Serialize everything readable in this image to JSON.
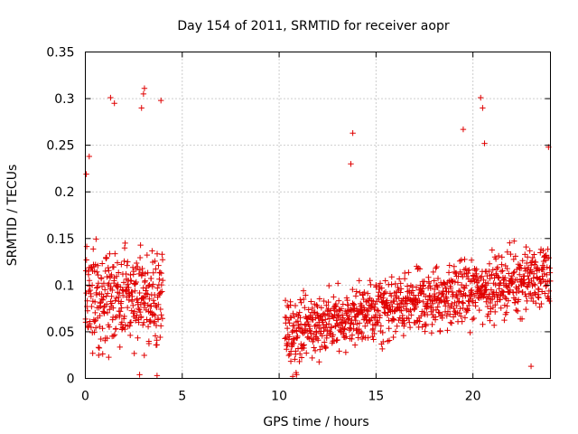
{
  "chart_data": {
    "type": "scatter",
    "title": "Day 154 of 2011, SRMTID for receiver aopr",
    "xlabel": "GPS time / hours",
    "ylabel": "SRMTID / TECUs",
    "xlim": [
      0,
      24
    ],
    "ylim": [
      0,
      0.35
    ],
    "x_ticks": [
      0,
      5,
      10,
      15,
      20
    ],
    "x_tick_labels": [
      "0",
      "5",
      "10",
      "15",
      "20"
    ],
    "y_ticks": [
      0,
      0.05,
      0.1,
      0.15,
      0.2,
      0.25,
      0.3,
      0.35
    ],
    "y_tick_labels": [
      "0",
      "0.05",
      "0.1",
      "0.15",
      "0.2",
      "0.25",
      "0.3",
      "0.35"
    ],
    "grid": true,
    "marker": "+",
    "color": "#e00000",
    "series": [
      {
        "name": "SRMTID",
        "segments": [
          {
            "x_start": 0.0,
            "x_end": 4.0,
            "base": 0.085,
            "trend": 0.0,
            "spread": 0.055,
            "step": 0.012
          },
          {
            "x_start": 10.3,
            "x_end": 24.0,
            "base": 0.05,
            "trend": 0.0045,
            "spread": 0.035,
            "step": 0.013
          }
        ],
        "notable_points": [
          {
            "x": 3.05,
            "y": 0.311
          },
          {
            "x": 3.0,
            "y": 0.305
          },
          {
            "x": 1.3,
            "y": 0.301
          },
          {
            "x": 3.9,
            "y": 0.298
          },
          {
            "x": 2.9,
            "y": 0.29
          },
          {
            "x": 1.5,
            "y": 0.295
          },
          {
            "x": 20.4,
            "y": 0.301
          },
          {
            "x": 20.5,
            "y": 0.29
          },
          {
            "x": 19.5,
            "y": 0.267
          },
          {
            "x": 13.8,
            "y": 0.263
          },
          {
            "x": 20.6,
            "y": 0.252
          },
          {
            "x": 0.2,
            "y": 0.238
          },
          {
            "x": 13.7,
            "y": 0.23
          },
          {
            "x": 23.9,
            "y": 0.248
          },
          {
            "x": 0.05,
            "y": 0.219
          },
          {
            "x": 10.7,
            "y": 0.002
          },
          {
            "x": 10.9,
            "y": 0.004
          },
          {
            "x": 3.7,
            "y": 0.003
          },
          {
            "x": 2.8,
            "y": 0.004
          },
          {
            "x": 23.0,
            "y": 0.013
          }
        ]
      }
    ]
  }
}
